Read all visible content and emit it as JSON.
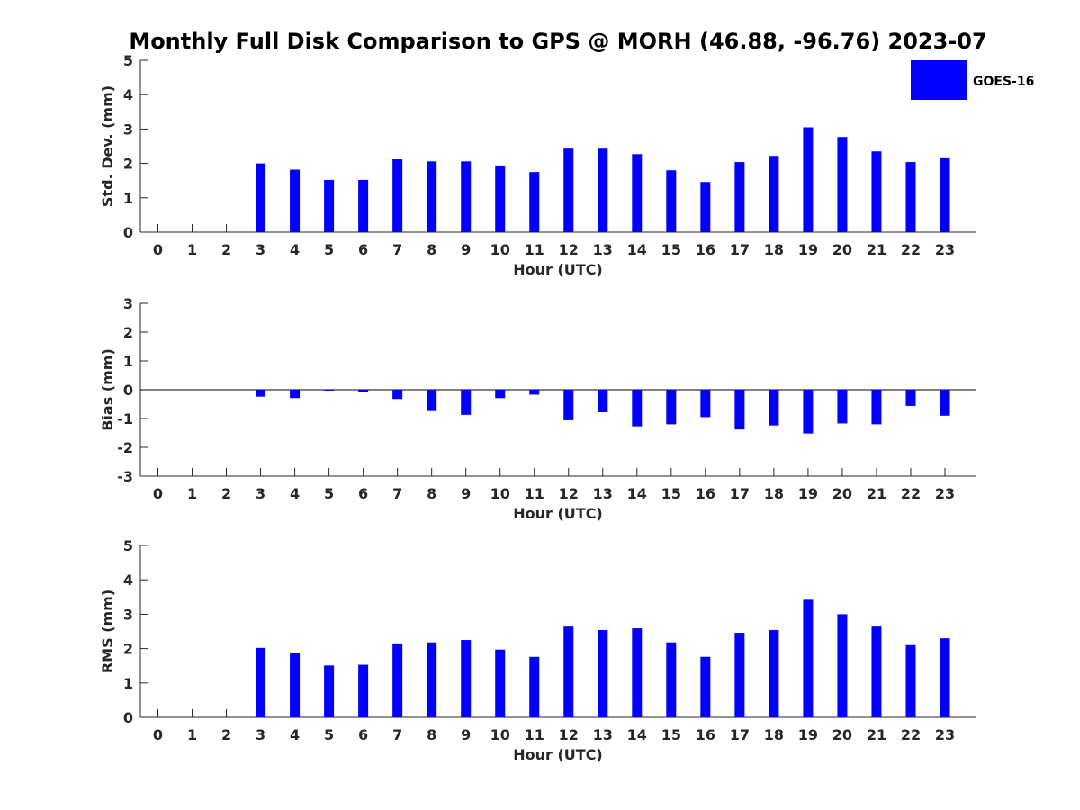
{
  "title": "Monthly Full Disk Comparison to GPS @ MORH (46.88, -96.76) 2023-07",
  "legend": {
    "label": "GOES-16",
    "color": "#0000ff"
  },
  "chart_data": [
    {
      "type": "bar",
      "name": "stddev",
      "xlabel": "Hour (UTC)",
      "ylabel": "Std. Dev. (mm)",
      "ylim": [
        0,
        5
      ],
      "yticks": [
        0,
        1,
        2,
        3,
        4,
        5
      ],
      "categories": [
        "0",
        "1",
        "2",
        "3",
        "4",
        "5",
        "6",
        "7",
        "8",
        "9",
        "10",
        "11",
        "12",
        "13",
        "14",
        "15",
        "16",
        "17",
        "18",
        "19",
        "20",
        "21",
        "22",
        "23"
      ],
      "series": [
        {
          "name": "GOES-16",
          "color": "#0000ff",
          "values": [
            null,
            null,
            null,
            2.0,
            1.82,
            1.52,
            1.52,
            2.12,
            2.06,
            2.06,
            1.94,
            1.75,
            2.43,
            2.43,
            2.27,
            1.8,
            1.46,
            2.04,
            2.22,
            3.05,
            2.77,
            2.35,
            2.04,
            2.15
          ]
        }
      ],
      "legend": "top-right"
    },
    {
      "type": "bar",
      "name": "bias",
      "xlabel": "Hour (UTC)",
      "ylabel": "Bias (mm)",
      "ylim": [
        -3,
        3
      ],
      "yticks": [
        -3,
        -2,
        -1,
        0,
        1,
        2,
        3
      ],
      "categories": [
        "0",
        "1",
        "2",
        "3",
        "4",
        "5",
        "6",
        "7",
        "8",
        "9",
        "10",
        "11",
        "12",
        "13",
        "14",
        "15",
        "16",
        "17",
        "18",
        "19",
        "20",
        "21",
        "22",
        "23"
      ],
      "series": [
        {
          "name": "GOES-16",
          "color": "#0000ff",
          "values": [
            null,
            null,
            null,
            -0.24,
            -0.29,
            -0.02,
            -0.08,
            -0.32,
            -0.74,
            -0.87,
            -0.29,
            -0.17,
            -1.06,
            -0.78,
            -1.27,
            -1.2,
            -0.95,
            -1.38,
            -1.24,
            -1.52,
            -1.17,
            -1.2,
            -0.56,
            -0.9
          ]
        }
      ],
      "zero_line": true
    },
    {
      "type": "bar",
      "name": "rms",
      "xlabel": "Hour (UTC)",
      "ylabel": "RMS (mm)",
      "ylim": [
        0,
        5
      ],
      "yticks": [
        0,
        1,
        2,
        3,
        4,
        5
      ],
      "categories": [
        "0",
        "1",
        "2",
        "3",
        "4",
        "5",
        "6",
        "7",
        "8",
        "9",
        "10",
        "11",
        "12",
        "13",
        "14",
        "15",
        "16",
        "17",
        "18",
        "19",
        "20",
        "21",
        "22",
        "23"
      ],
      "series": [
        {
          "name": "GOES-16",
          "color": "#0000ff",
          "values": [
            null,
            null,
            null,
            2.02,
            1.87,
            1.51,
            1.53,
            2.15,
            2.18,
            2.25,
            1.97,
            1.76,
            2.64,
            2.54,
            2.59,
            2.18,
            1.76,
            2.46,
            2.54,
            3.42,
            3.0,
            2.64,
            2.1,
            2.3
          ]
        }
      ]
    }
  ]
}
